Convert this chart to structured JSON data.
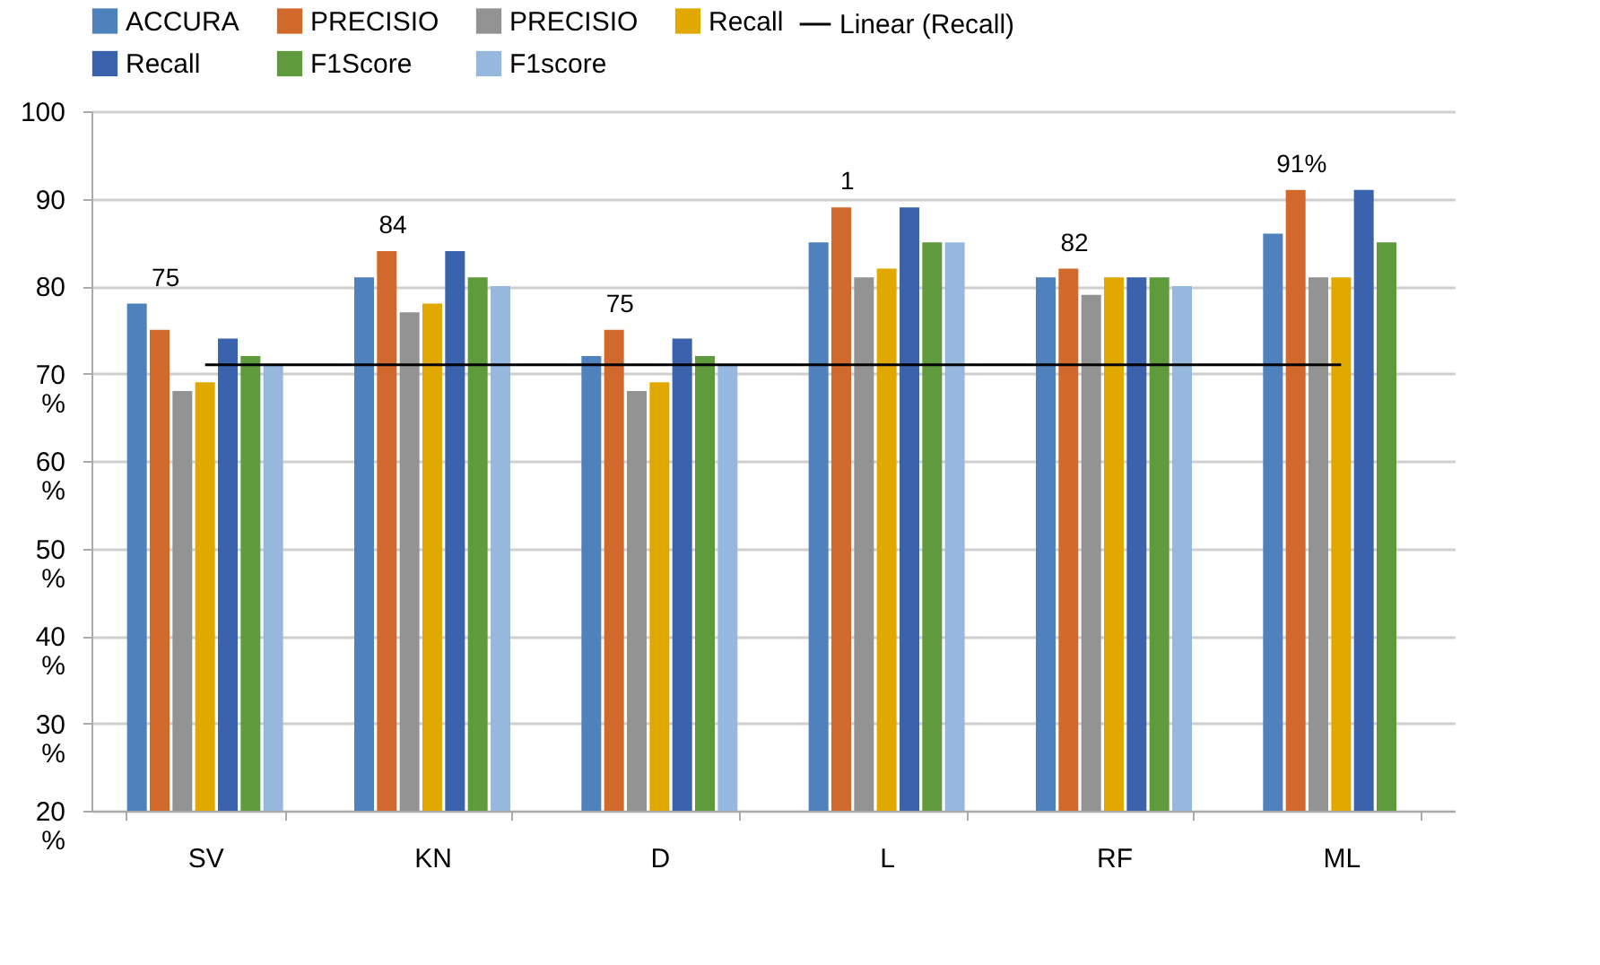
{
  "chart_data": {
    "type": "bar",
    "categories": [
      "SV",
      "KN",
      "D",
      "L",
      "RF",
      "ML"
    ],
    "series": [
      {
        "name": "ACCURA",
        "color": "#4f81bd",
        "values": [
          78,
          81,
          72,
          85,
          81,
          86
        ]
      },
      {
        "name": "PRECISIO",
        "color": "#d2692c",
        "values": [
          75,
          84,
          75,
          89,
          82,
          91
        ]
      },
      {
        "name": "PRECISIO",
        "color": "#939393",
        "values": [
          68,
          77,
          68,
          81,
          79,
          81
        ]
      },
      {
        "name": "Recall",
        "color": "#e1a900",
        "values": [
          69,
          78,
          69,
          82,
          81,
          81
        ]
      },
      {
        "name": "Recall",
        "color": "#3a62ad",
        "values": [
          74,
          84,
          74,
          89,
          81,
          91
        ]
      },
      {
        "name": "F1Score",
        "color": "#5f9a3c",
        "values": [
          72,
          81,
          72,
          85,
          81,
          85
        ]
      },
      {
        "name": "F1score",
        "color": "#96b8df",
        "values": [
          71,
          80,
          71,
          85,
          80,
          null
        ]
      },
      {
        "name": "Linear (Recall)",
        "type": "line",
        "color": "#000000",
        "values": [
          71,
          71,
          71,
          71,
          71,
          71
        ]
      }
    ],
    "ylim": [
      20,
      100
    ],
    "yticks": [
      {
        "value": 20,
        "label": "20\n%"
      },
      {
        "value": 30,
        "label": "30\n%"
      },
      {
        "value": 40,
        "label": "40\n%"
      },
      {
        "value": 50,
        "label": "50\n%"
      },
      {
        "value": 60,
        "label": "60\n%"
      },
      {
        "value": 70,
        "label": "70\n%"
      },
      80,
      90,
      100
    ],
    "grid": "y",
    "legend": "top",
    "annotations": [
      "75",
      "84",
      "75",
      "1",
      "82",
      "91%"
    ]
  }
}
